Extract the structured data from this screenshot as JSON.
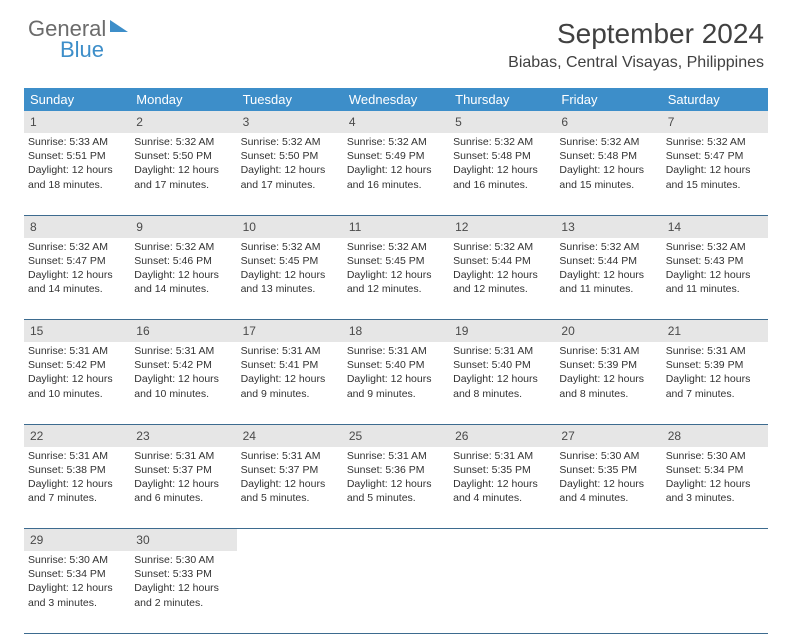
{
  "brand": {
    "word1": "General",
    "word2": "Blue"
  },
  "title": "September 2024",
  "location": "Biabas, Central Visayas, Philippines",
  "colors": {
    "header_bg": "#3d8ec9",
    "daynum_bg": "#e6e6e6",
    "row_border": "#3d6b8f",
    "text": "#323232",
    "title_text": "#414141"
  },
  "day_headers": [
    "Sunday",
    "Monday",
    "Tuesday",
    "Wednesday",
    "Thursday",
    "Friday",
    "Saturday"
  ],
  "weeks": [
    [
      {
        "n": "1",
        "sr": "5:33 AM",
        "ss": "5:51 PM",
        "dl": "12 hours and 18 minutes."
      },
      {
        "n": "2",
        "sr": "5:32 AM",
        "ss": "5:50 PM",
        "dl": "12 hours and 17 minutes."
      },
      {
        "n": "3",
        "sr": "5:32 AM",
        "ss": "5:50 PM",
        "dl": "12 hours and 17 minutes."
      },
      {
        "n": "4",
        "sr": "5:32 AM",
        "ss": "5:49 PM",
        "dl": "12 hours and 16 minutes."
      },
      {
        "n": "5",
        "sr": "5:32 AM",
        "ss": "5:48 PM",
        "dl": "12 hours and 16 minutes."
      },
      {
        "n": "6",
        "sr": "5:32 AM",
        "ss": "5:48 PM",
        "dl": "12 hours and 15 minutes."
      },
      {
        "n": "7",
        "sr": "5:32 AM",
        "ss": "5:47 PM",
        "dl": "12 hours and 15 minutes."
      }
    ],
    [
      {
        "n": "8",
        "sr": "5:32 AM",
        "ss": "5:47 PM",
        "dl": "12 hours and 14 minutes."
      },
      {
        "n": "9",
        "sr": "5:32 AM",
        "ss": "5:46 PM",
        "dl": "12 hours and 14 minutes."
      },
      {
        "n": "10",
        "sr": "5:32 AM",
        "ss": "5:45 PM",
        "dl": "12 hours and 13 minutes."
      },
      {
        "n": "11",
        "sr": "5:32 AM",
        "ss": "5:45 PM",
        "dl": "12 hours and 12 minutes."
      },
      {
        "n": "12",
        "sr": "5:32 AM",
        "ss": "5:44 PM",
        "dl": "12 hours and 12 minutes."
      },
      {
        "n": "13",
        "sr": "5:32 AM",
        "ss": "5:44 PM",
        "dl": "12 hours and 11 minutes."
      },
      {
        "n": "14",
        "sr": "5:32 AM",
        "ss": "5:43 PM",
        "dl": "12 hours and 11 minutes."
      }
    ],
    [
      {
        "n": "15",
        "sr": "5:31 AM",
        "ss": "5:42 PM",
        "dl": "12 hours and 10 minutes."
      },
      {
        "n": "16",
        "sr": "5:31 AM",
        "ss": "5:42 PM",
        "dl": "12 hours and 10 minutes."
      },
      {
        "n": "17",
        "sr": "5:31 AM",
        "ss": "5:41 PM",
        "dl": "12 hours and 9 minutes."
      },
      {
        "n": "18",
        "sr": "5:31 AM",
        "ss": "5:40 PM",
        "dl": "12 hours and 9 minutes."
      },
      {
        "n": "19",
        "sr": "5:31 AM",
        "ss": "5:40 PM",
        "dl": "12 hours and 8 minutes."
      },
      {
        "n": "20",
        "sr": "5:31 AM",
        "ss": "5:39 PM",
        "dl": "12 hours and 8 minutes."
      },
      {
        "n": "21",
        "sr": "5:31 AM",
        "ss": "5:39 PM",
        "dl": "12 hours and 7 minutes."
      }
    ],
    [
      {
        "n": "22",
        "sr": "5:31 AM",
        "ss": "5:38 PM",
        "dl": "12 hours and 7 minutes."
      },
      {
        "n": "23",
        "sr": "5:31 AM",
        "ss": "5:37 PM",
        "dl": "12 hours and 6 minutes."
      },
      {
        "n": "24",
        "sr": "5:31 AM",
        "ss": "5:37 PM",
        "dl": "12 hours and 5 minutes."
      },
      {
        "n": "25",
        "sr": "5:31 AM",
        "ss": "5:36 PM",
        "dl": "12 hours and 5 minutes."
      },
      {
        "n": "26",
        "sr": "5:31 AM",
        "ss": "5:35 PM",
        "dl": "12 hours and 4 minutes."
      },
      {
        "n": "27",
        "sr": "5:30 AM",
        "ss": "5:35 PM",
        "dl": "12 hours and 4 minutes."
      },
      {
        "n": "28",
        "sr": "5:30 AM",
        "ss": "5:34 PM",
        "dl": "12 hours and 3 minutes."
      }
    ],
    [
      {
        "n": "29",
        "sr": "5:30 AM",
        "ss": "5:34 PM",
        "dl": "12 hours and 3 minutes."
      },
      {
        "n": "30",
        "sr": "5:30 AM",
        "ss": "5:33 PM",
        "dl": "12 hours and 2 minutes."
      },
      null,
      null,
      null,
      null,
      null
    ]
  ],
  "labels": {
    "sunrise": "Sunrise: ",
    "sunset": "Sunset: ",
    "daylight": "Daylight: "
  }
}
